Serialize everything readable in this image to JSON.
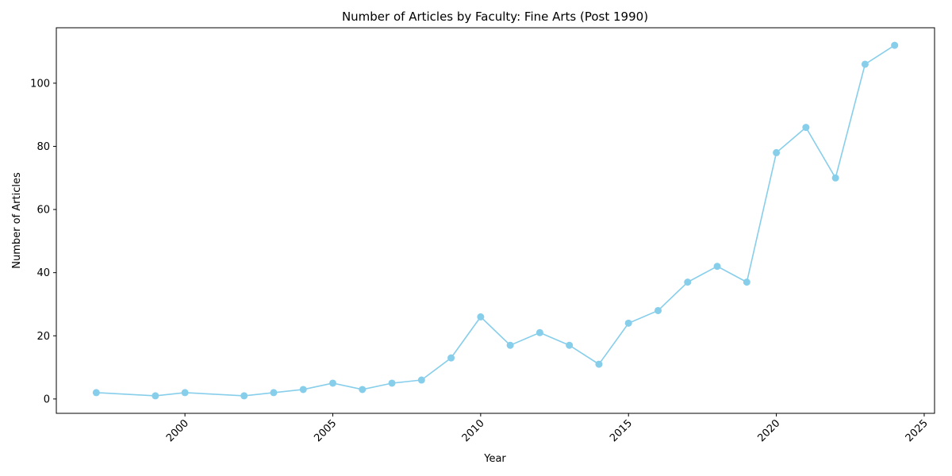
{
  "chart_data": {
    "type": "line",
    "title": "Number of Articles by Faculty: Fine Arts (Post 1990)",
    "xlabel": "Year",
    "ylabel": "Number of Articles",
    "xlim": [
      1995.65,
      2025.35
    ],
    "ylim": [
      -4.55,
      117.55
    ],
    "xticks": [
      2000,
      2005,
      2010,
      2015,
      2020,
      2025
    ],
    "yticks": [
      0,
      20,
      40,
      60,
      80,
      100
    ],
    "grid": false,
    "legend": "none",
    "series_color": "#87CEEB",
    "series": [
      {
        "x": [
          1997,
          1999,
          2000,
          2002,
          2003,
          2004,
          2005,
          2006,
          2007,
          2008,
          2009,
          2010,
          2011,
          2012,
          2013,
          2014,
          2015,
          2016,
          2017,
          2018,
          2019,
          2020,
          2021,
          2022,
          2023,
          2024
        ],
        "values": [
          2,
          1,
          2,
          1,
          2,
          3,
          5,
          3,
          5,
          6,
          13,
          26,
          17,
          21,
          17,
          11,
          24,
          28,
          37,
          42,
          37,
          78,
          86,
          70,
          106,
          112
        ]
      }
    ]
  }
}
